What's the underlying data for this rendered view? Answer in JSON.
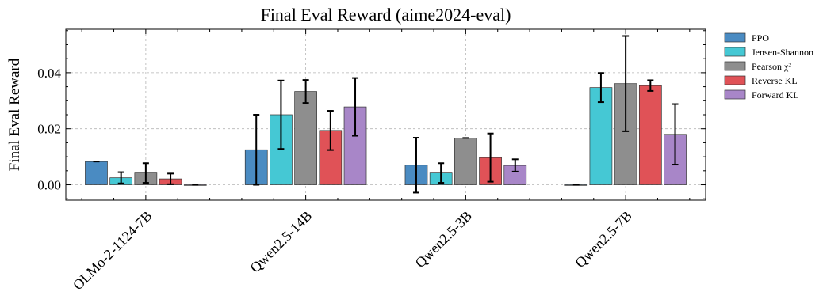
{
  "chart_data": {
    "type": "bar",
    "title": "Final Eval Reward (aime2024-eval)",
    "xlabel": "",
    "ylabel": "Final Eval Reward",
    "ylim": [
      -0.0055,
      0.0555
    ],
    "yticks": [
      "0.00",
      "0.02",
      "0.04"
    ],
    "grid": true,
    "legend_position": "outside-right",
    "categories": [
      "OLMo-2-1124-7B",
      "Qwen2.5-14B",
      "Qwen2.5-3B",
      "Qwen2.5-7B"
    ],
    "series": [
      {
        "name": "PPO",
        "color": "#4a8bc2",
        "values": [
          0.0083,
          0.0125,
          0.007,
          0.0
        ],
        "errors": [
          0.0,
          0.0125,
          0.0098,
          0.0
        ]
      },
      {
        "name": "Jensen-Shannon",
        "color": "#45c8d4",
        "values": [
          0.0025,
          0.025,
          0.0042,
          0.0347
        ],
        "errors": [
          0.002,
          0.0122,
          0.0035,
          0.0052
        ]
      },
      {
        "name": "Pearson χ²",
        "color": "#8e8e8e",
        "values": [
          0.0042,
          0.0333,
          0.0167,
          0.0361
        ],
        "errors": [
          0.0035,
          0.0041,
          0.0,
          0.017
        ]
      },
      {
        "name": "Reverse KL",
        "color": "#e05257",
        "values": [
          0.0021,
          0.0194,
          0.0097,
          0.0354
        ],
        "errors": [
          0.0019,
          0.007,
          0.0086,
          0.0019
        ]
      },
      {
        "name": "Forward KL",
        "color": "#a886c8",
        "values": [
          0.0,
          0.0278,
          0.0069,
          0.018
        ],
        "errors": [
          0.0,
          0.0103,
          0.0022,
          0.0108
        ]
      }
    ]
  }
}
